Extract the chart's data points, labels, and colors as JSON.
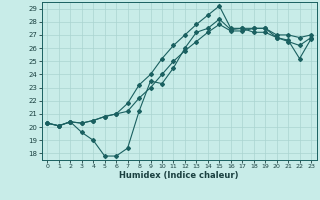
{
  "xlabel": "Humidex (Indice chaleur)",
  "xlim": [
    -0.5,
    23.5
  ],
  "ylim": [
    17.5,
    29.5
  ],
  "yticks": [
    18,
    19,
    20,
    21,
    22,
    23,
    24,
    25,
    26,
    27,
    28,
    29
  ],
  "xticks": [
    0,
    1,
    2,
    3,
    4,
    5,
    6,
    7,
    8,
    9,
    10,
    11,
    12,
    13,
    14,
    15,
    16,
    17,
    18,
    19,
    20,
    21,
    22,
    23
  ],
  "bg_color": "#c8ece8",
  "grid_color": "#aad4d0",
  "line_color": "#1a6060",
  "line1_x": [
    0,
    1,
    2,
    3,
    4,
    5,
    6,
    7,
    8,
    9,
    10,
    11,
    12,
    13,
    14,
    15,
    16,
    17,
    18,
    19,
    20,
    21,
    22,
    23
  ],
  "line1_y": [
    20.3,
    20.1,
    20.4,
    19.6,
    19.0,
    17.8,
    17.8,
    18.4,
    21.2,
    23.5,
    23.3,
    24.5,
    26.0,
    27.2,
    27.5,
    28.2,
    27.4,
    27.5,
    27.5,
    27.5,
    26.8,
    26.6,
    25.2,
    26.7
  ],
  "line2_x": [
    0,
    1,
    2,
    3,
    4,
    5,
    6,
    7,
    8,
    9,
    10,
    11,
    12,
    13,
    14,
    15,
    16,
    17,
    18,
    19,
    20,
    21,
    22,
    23
  ],
  "line2_y": [
    20.3,
    20.1,
    20.4,
    20.3,
    20.5,
    20.8,
    21.0,
    21.2,
    22.2,
    23.0,
    24.0,
    25.0,
    25.8,
    26.5,
    27.2,
    27.8,
    27.3,
    27.3,
    27.5,
    27.5,
    27.0,
    27.0,
    26.8,
    27.0
  ],
  "line3_x": [
    0,
    1,
    2,
    3,
    4,
    5,
    6,
    7,
    8,
    9,
    10,
    11,
    12,
    13,
    14,
    15,
    16,
    17,
    18,
    19,
    20,
    21,
    22,
    23
  ],
  "line3_y": [
    20.3,
    20.1,
    20.4,
    20.3,
    20.5,
    20.8,
    21.0,
    21.8,
    23.2,
    24.0,
    25.2,
    26.2,
    27.0,
    27.8,
    28.5,
    29.2,
    27.5,
    27.5,
    27.2,
    27.2,
    26.8,
    26.5,
    26.2,
    26.8
  ]
}
